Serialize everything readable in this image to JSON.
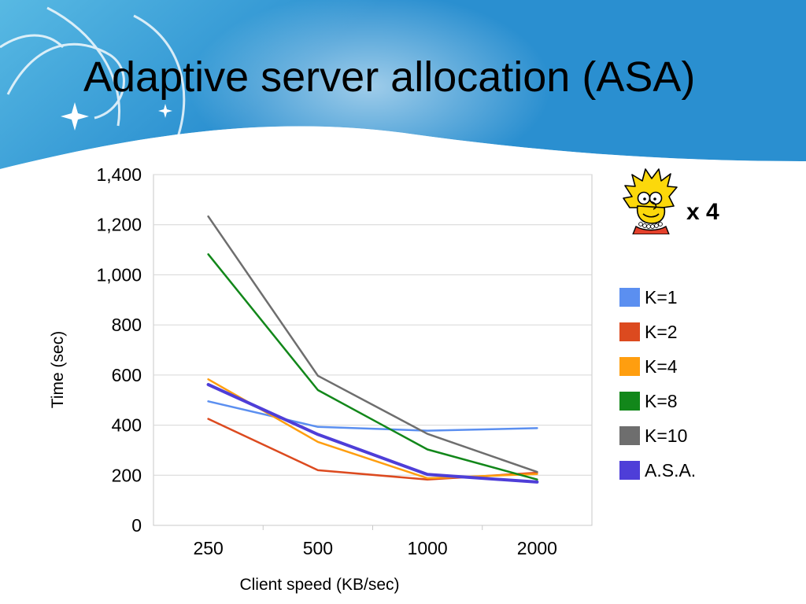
{
  "slide": {
    "title": "Adaptive server allocation (ASA)",
    "multiplier_label": "x 4",
    "character_icon": "lisa-simpson-cartoon-icon"
  },
  "colors": {
    "banner_light": "#cfe9f6",
    "banner_mid": "#58b9e3",
    "banner_dark": "#2a8fd0"
  },
  "chart_data": {
    "type": "line",
    "categories": [
      "250",
      "500",
      "1000",
      "2000"
    ],
    "xlabel": "Client speed (KB/sec)",
    "ylabel": "Time (sec)",
    "ylim": [
      0,
      1400
    ],
    "yticks": [
      0,
      200,
      400,
      600,
      800,
      1000,
      1200,
      1400
    ],
    "ytick_labels": [
      "0",
      "200",
      "400",
      "600",
      "800",
      "1,000",
      "1,200",
      "1,400"
    ],
    "grid": true,
    "legend_position": "right",
    "series": [
      {
        "name": "K=1",
        "color": "#5b8ff0",
        "values": [
          495,
          393,
          378,
          388
        ]
      },
      {
        "name": "K=2",
        "color": "#dc4a1f",
        "values": [
          425,
          220,
          183,
          210
        ]
      },
      {
        "name": "K=4",
        "color": "#ff9e0f",
        "values": [
          583,
          333,
          188,
          205
        ]
      },
      {
        "name": "K=8",
        "color": "#12871a",
        "values": [
          1082,
          540,
          303,
          183
        ]
      },
      {
        "name": "K=10",
        "color": "#6e6e6e",
        "values": [
          1233,
          597,
          365,
          213
        ]
      },
      {
        "name": "A.S.A.",
        "color": "#4e3ed8",
        "values": [
          562,
          363,
          203,
          173
        ]
      }
    ]
  }
}
